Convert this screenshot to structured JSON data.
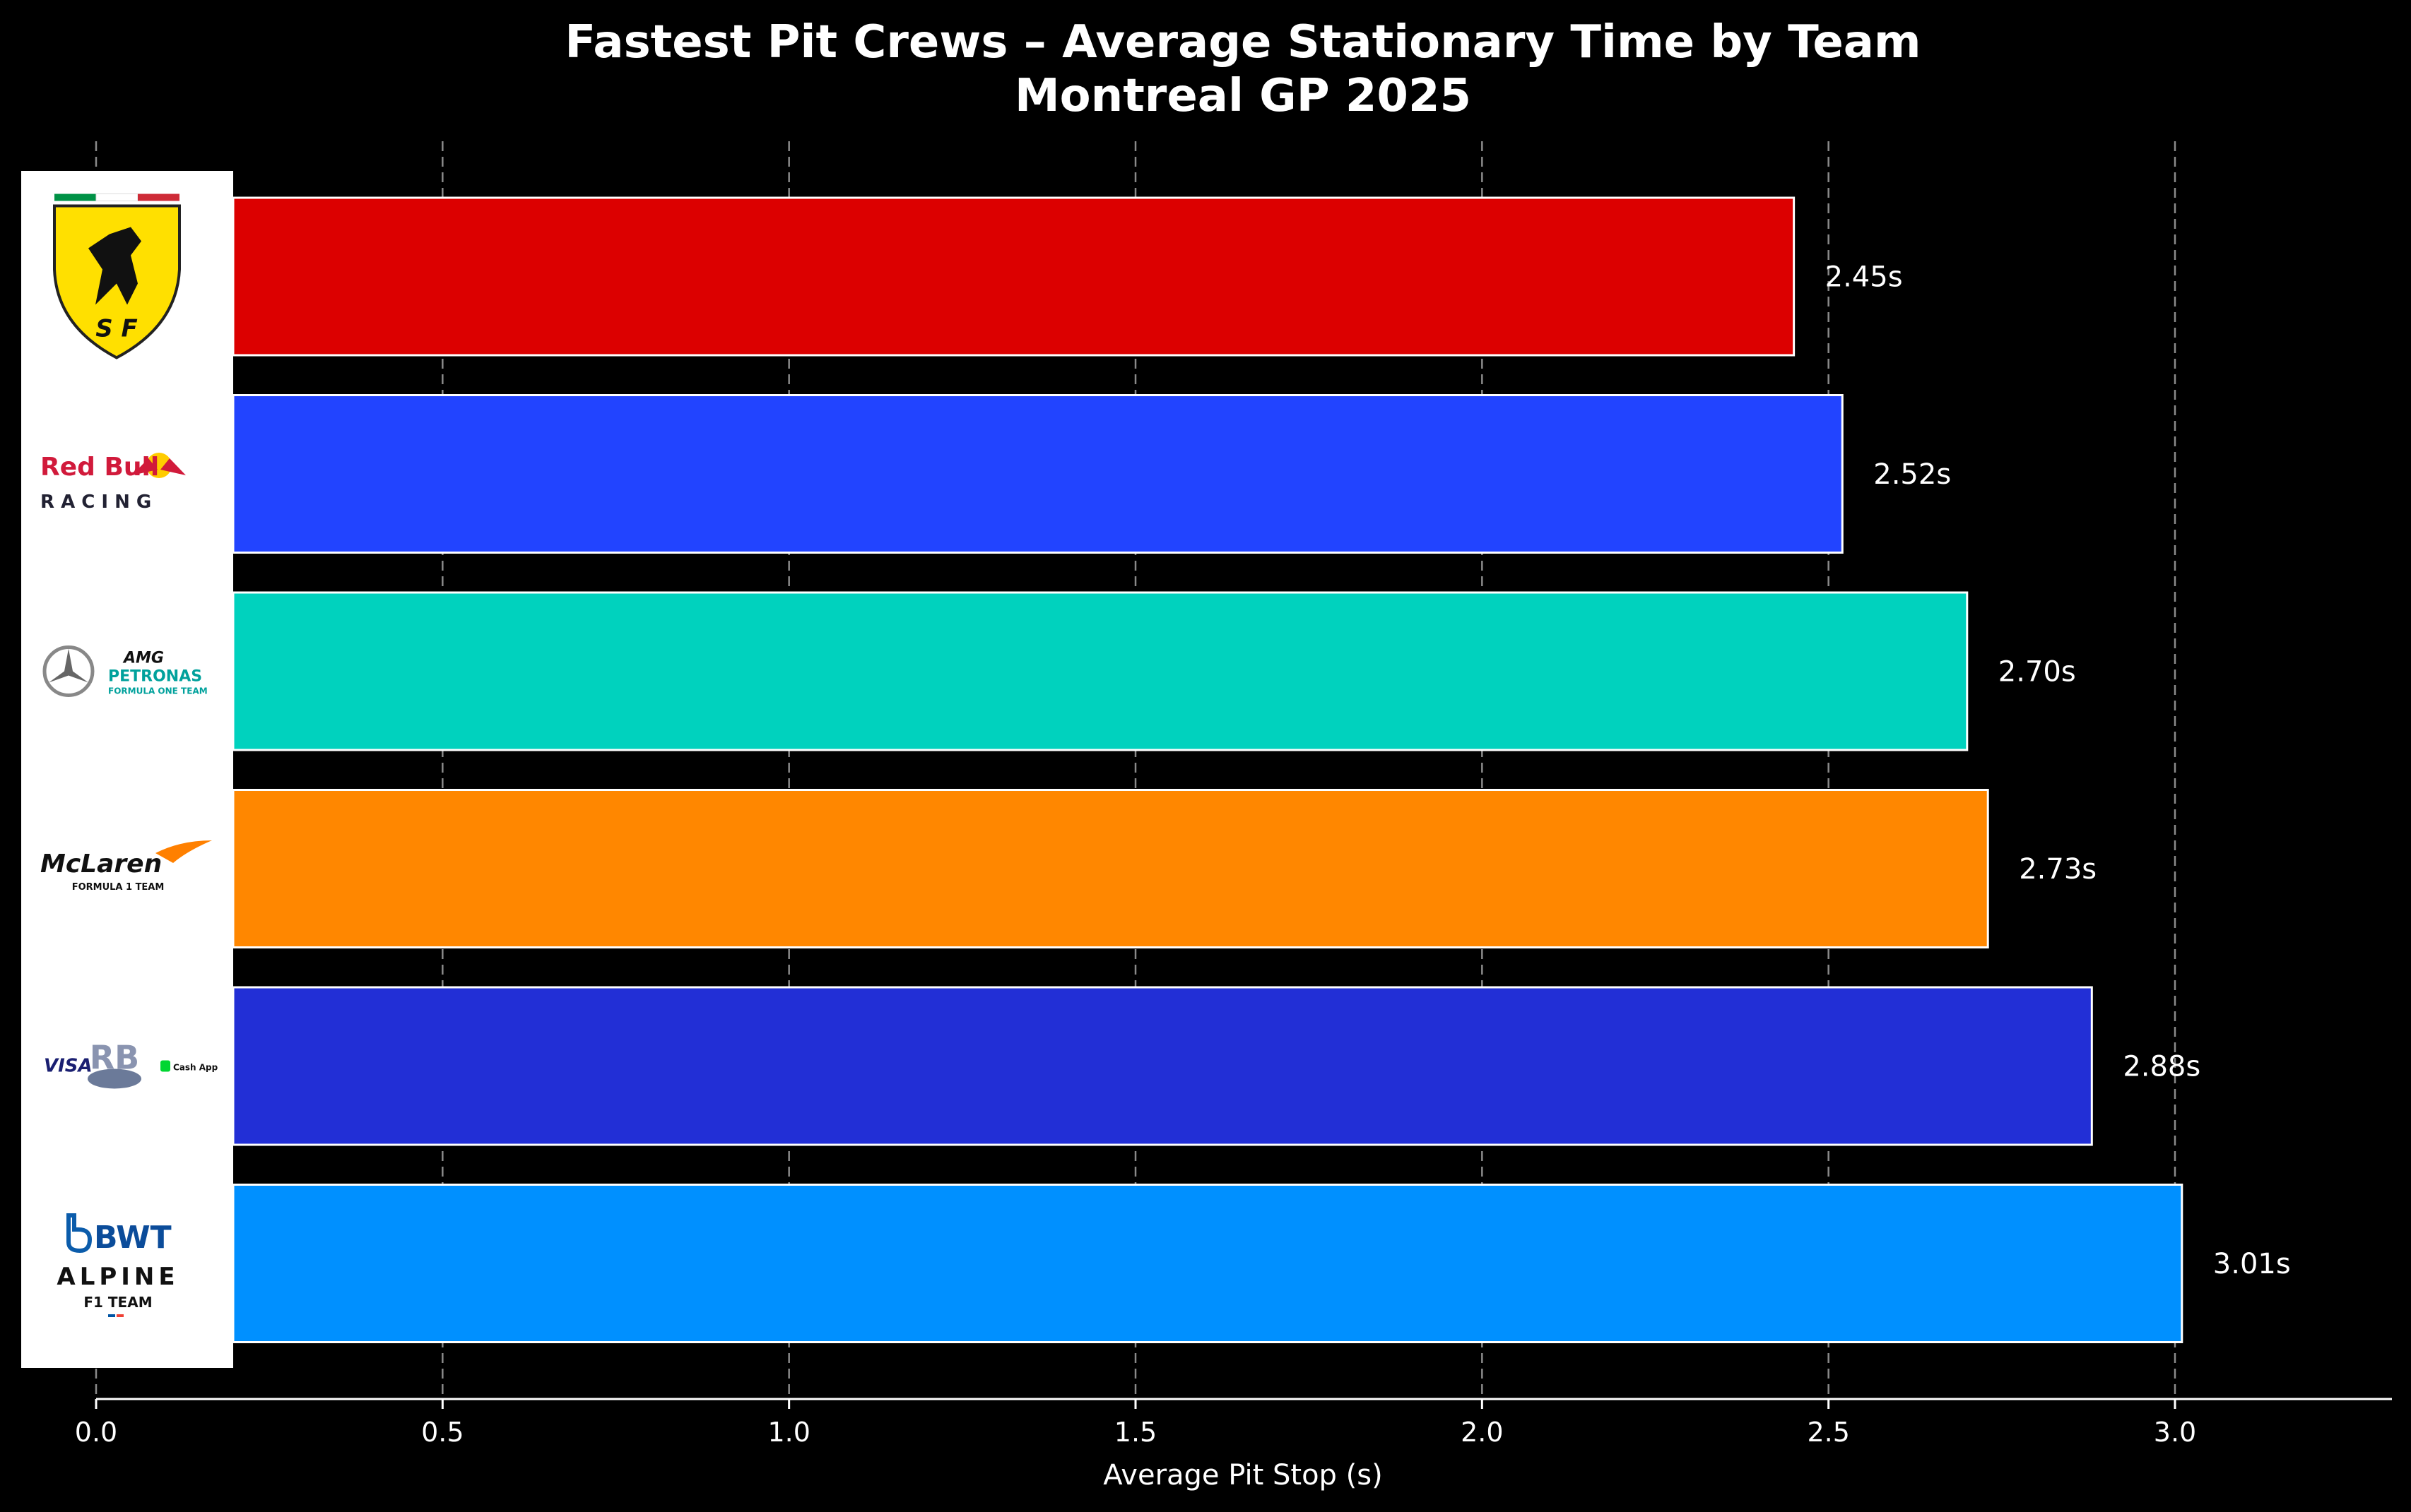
{
  "chart_data": {
    "type": "bar",
    "orientation": "horizontal",
    "title": "Fastest Pit Crews – Average Stationary Time by Team",
    "subtitle": "Montreal GP 2025",
    "xlabel": "Average Pit Stop (s)",
    "ylabel": "",
    "xlim": [
      0,
      3.3
    ],
    "xticks": [
      "0.0",
      "0.5",
      "1.0",
      "1.5",
      "2.0",
      "2.5",
      "3.0"
    ],
    "grid": "vertical-dashed",
    "categories": [
      "Ferrari",
      "Red Bull Racing",
      "Mercedes-AMG Petronas",
      "McLaren",
      "Racing Bulls",
      "Alpine"
    ],
    "values": [
      2.45,
      2.52,
      2.7,
      2.73,
      2.88,
      3.01
    ],
    "value_labels": [
      "2.45s",
      "2.52s",
      "2.70s",
      "2.73s",
      "2.88s",
      "3.01s"
    ],
    "colors": [
      "#dc0000",
      "#2244ff",
      "#00d2be",
      "#ff8700",
      "#222fd6",
      "#0090ff"
    ]
  },
  "logos": [
    {
      "icon": "ferrari-logo-icon",
      "lines": [
        "S F"
      ]
    },
    {
      "icon": "redbull-logo-icon",
      "lines": [
        "Red Bull",
        "R A C I N G"
      ]
    },
    {
      "icon": "mercedes-logo-icon",
      "lines": [
        "AMG",
        "PETRONAS",
        "FORMULA ONE TEAM"
      ]
    },
    {
      "icon": "mclaren-logo-icon",
      "lines": [
        "McLaren",
        "FORMULA 1 TEAM"
      ]
    },
    {
      "icon": "racing-bulls-logo-icon",
      "lines": [
        "VISA",
        "RB",
        "Cash App"
      ]
    },
    {
      "icon": "alpine-logo-icon",
      "lines": [
        "BWT",
        "ALPINE",
        "F1 TEAM"
      ]
    }
  ]
}
